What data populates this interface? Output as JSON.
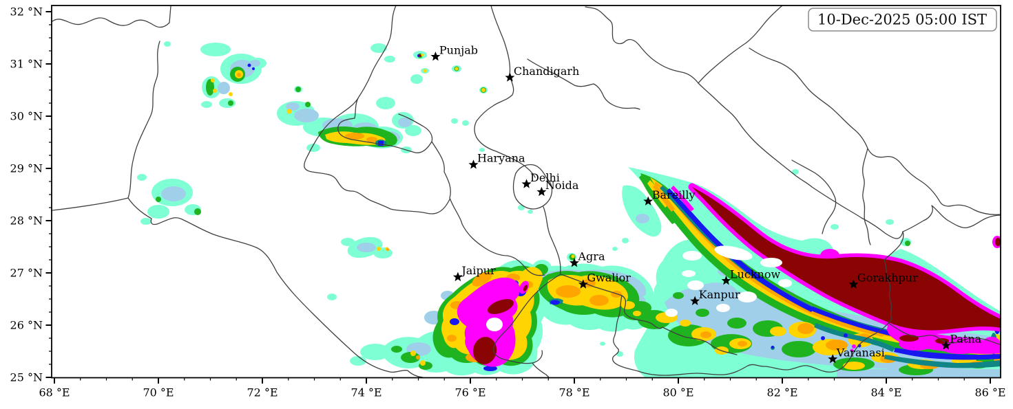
{
  "timestamp_box": {
    "label": "10-Dec-2025 05:00 IST"
  },
  "palette": {
    "aqua": "#7FFFD4",
    "lightblue": "#A0CFE9",
    "green": "#1FB41F",
    "yellow": "#FFD400",
    "orange": "#FFA500",
    "teal": "#0F8585",
    "blue": "#1717EF",
    "magenta": "#FF00FF",
    "darkred": "#8B0404",
    "boundary": "#3f3f3f",
    "frame": "#000000",
    "land": "#ffffff"
  },
  "precip_intensity_order": [
    "aqua",
    "lightblue",
    "green",
    "yellow",
    "orange",
    "teal",
    "blue",
    "magenta",
    "darkred"
  ],
  "axes": {
    "x": {
      "unit_suffix": " °E",
      "major_deg": [
        68,
        70,
        72,
        74,
        76,
        78,
        80,
        82,
        84,
        86
      ],
      "major_labels": [
        "68 °E",
        "70 °E",
        "72 °E",
        "74 °E",
        "76 °E",
        "78 °E",
        "80 °E",
        "82 °E",
        "84 °E",
        "86 °E"
      ],
      "minor_step_deg": 0.5,
      "range_deg": [
        67.95,
        86.2
      ]
    },
    "y": {
      "unit_suffix": " °N",
      "major_deg": [
        25,
        26,
        27,
        28,
        29,
        30,
        31,
        32
      ],
      "major_labels": [
        "25 °N",
        "26 °N",
        "27 °N",
        "28 °N",
        "29 °N",
        "30 °N",
        "31 °N",
        "32 °N"
      ],
      "minor_step_deg": 0.25,
      "range_deg": [
        24.9,
        32.12
      ]
    }
  },
  "cities": [
    {
      "name": "Punjab",
      "lon": 75.33,
      "lat": 31.14
    },
    {
      "name": "Chandigarh",
      "lon": 76.76,
      "lat": 30.74
    },
    {
      "name": "Haryana",
      "lon": 76.06,
      "lat": 29.07
    },
    {
      "name": "Delhi",
      "lon": 77.08,
      "lat": 28.7
    },
    {
      "name": "Noida",
      "lon": 77.37,
      "lat": 28.55
    },
    {
      "name": "Bareilly",
      "lon": 79.42,
      "lat": 28.37
    },
    {
      "name": "Agra",
      "lon": 78.0,
      "lat": 27.19
    },
    {
      "name": "Jaipur",
      "lon": 75.76,
      "lat": 26.92
    },
    {
      "name": "Gwalior",
      "lon": 78.17,
      "lat": 26.78
    },
    {
      "name": "Lucknow",
      "lon": 80.92,
      "lat": 26.85
    },
    {
      "name": "Kanpur",
      "lon": 80.32,
      "lat": 26.46
    },
    {
      "name": "Gorakhpur",
      "lon": 83.37,
      "lat": 26.78
    },
    {
      "name": "Varanasi",
      "lon": 82.97,
      "lat": 25.35
    },
    {
      "name": "Patna",
      "lon": 85.15,
      "lat": 25.61
    }
  ]
}
